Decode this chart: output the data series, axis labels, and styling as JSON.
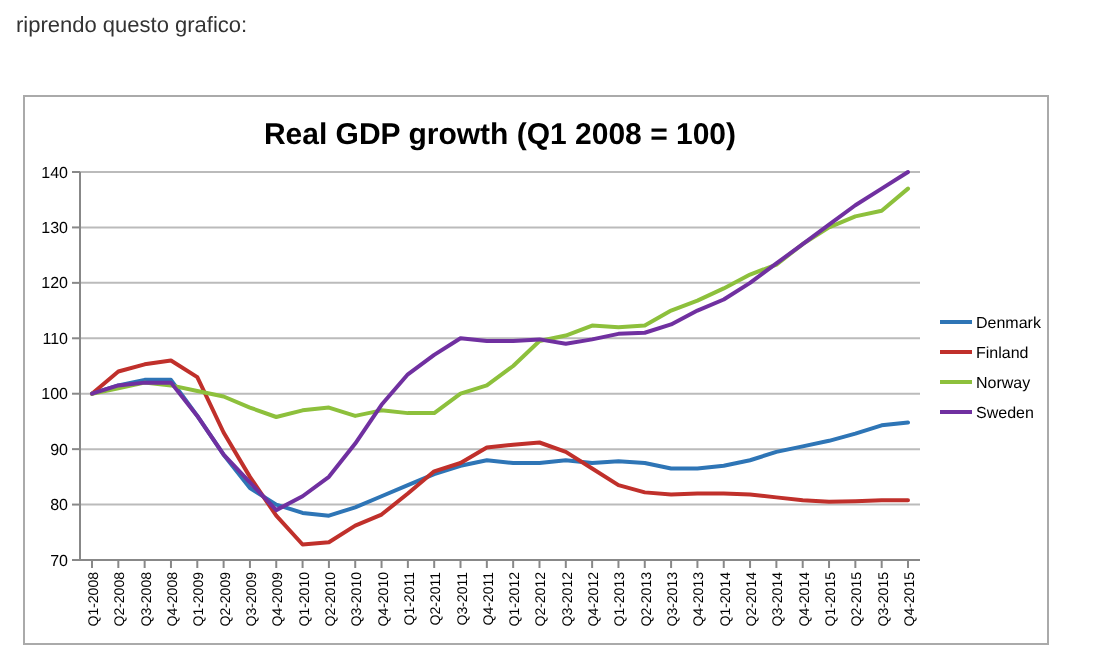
{
  "chart_data": {
    "type": "line",
    "title": "Real GDP growth (Q1 2008 = 100)",
    "annotations": [
      "riprendo questo grafico:"
    ],
    "categories": [
      "Q1-2008",
      "Q2-2008",
      "Q3-2008",
      "Q4-2008",
      "Q1-2009",
      "Q2-2009",
      "Q3-2009",
      "Q4-2009",
      "Q1-2010",
      "Q2-2010",
      "Q3-2010",
      "Q4-2010",
      "Q1-2011",
      "Q2-2011",
      "Q3-2011",
      "Q4-2011",
      "Q1-2012",
      "Q2-2012",
      "Q3-2012",
      "Q4-2012",
      "Q1-2013",
      "Q2-2013",
      "Q3-2013",
      "Q4-2013",
      "Q1-2014",
      "Q2-2014",
      "Q3-2014",
      "Q4-2014",
      "Q1-2015",
      "Q2-2015",
      "Q3-2015",
      "Q4-2015"
    ],
    "series": [
      {
        "name": "Denmark",
        "color": "#2e75b6",
        "values": [
          100,
          101.5,
          102.5,
          102.5,
          96,
          89,
          83,
          80,
          78.5,
          78,
          79.5,
          81.5,
          83.5,
          85.5,
          87,
          88,
          87.5,
          87.5,
          88,
          87.5,
          87.8,
          87.5,
          86.5,
          86.5,
          87,
          88,
          89.5,
          90.5,
          91.5,
          92.8,
          94.3,
          94.8
        ]
      },
      {
        "name": "Finland",
        "color": "#c0302b",
        "values": [
          100,
          104,
          105.3,
          106,
          103,
          93,
          85,
          78,
          72.8,
          73.2,
          76.2,
          78.2,
          82,
          86,
          87.5,
          90.3,
          90.8,
          91.2,
          89.5,
          86.5,
          83.5,
          82.2,
          81.8,
          82,
          82,
          81.8,
          81.3,
          80.8,
          80.5,
          80.6,
          80.8,
          80.8
        ]
      },
      {
        "name": "Norway",
        "color": "#8dc03c",
        "values": [
          100,
          101,
          102,
          101.5,
          100.5,
          99.5,
          97.5,
          95.8,
          97,
          97.5,
          96,
          97,
          96.5,
          96.5,
          100,
          101.5,
          105,
          109.5,
          110.5,
          112.3,
          112,
          112.3,
          115,
          116.8,
          119,
          121.5,
          123.3,
          127,
          130,
          132,
          133,
          137
        ]
      },
      {
        "name": "Sweden",
        "color": "#7030a0",
        "values": [
          100,
          101.5,
          102,
          102,
          96,
          89,
          84,
          79,
          81.5,
          85,
          91,
          98,
          103.5,
          107,
          110,
          109.5,
          109.5,
          109.8,
          109,
          109.8,
          110.8,
          111,
          112.5,
          115,
          117,
          120,
          123.5,
          127,
          130.5,
          134,
          137,
          140
        ]
      }
    ],
    "ylim": [
      70,
      140
    ],
    "yticks": [
      70,
      80,
      90,
      100,
      110,
      120,
      130,
      140
    ],
    "grid": "y",
    "legend": "right"
  }
}
